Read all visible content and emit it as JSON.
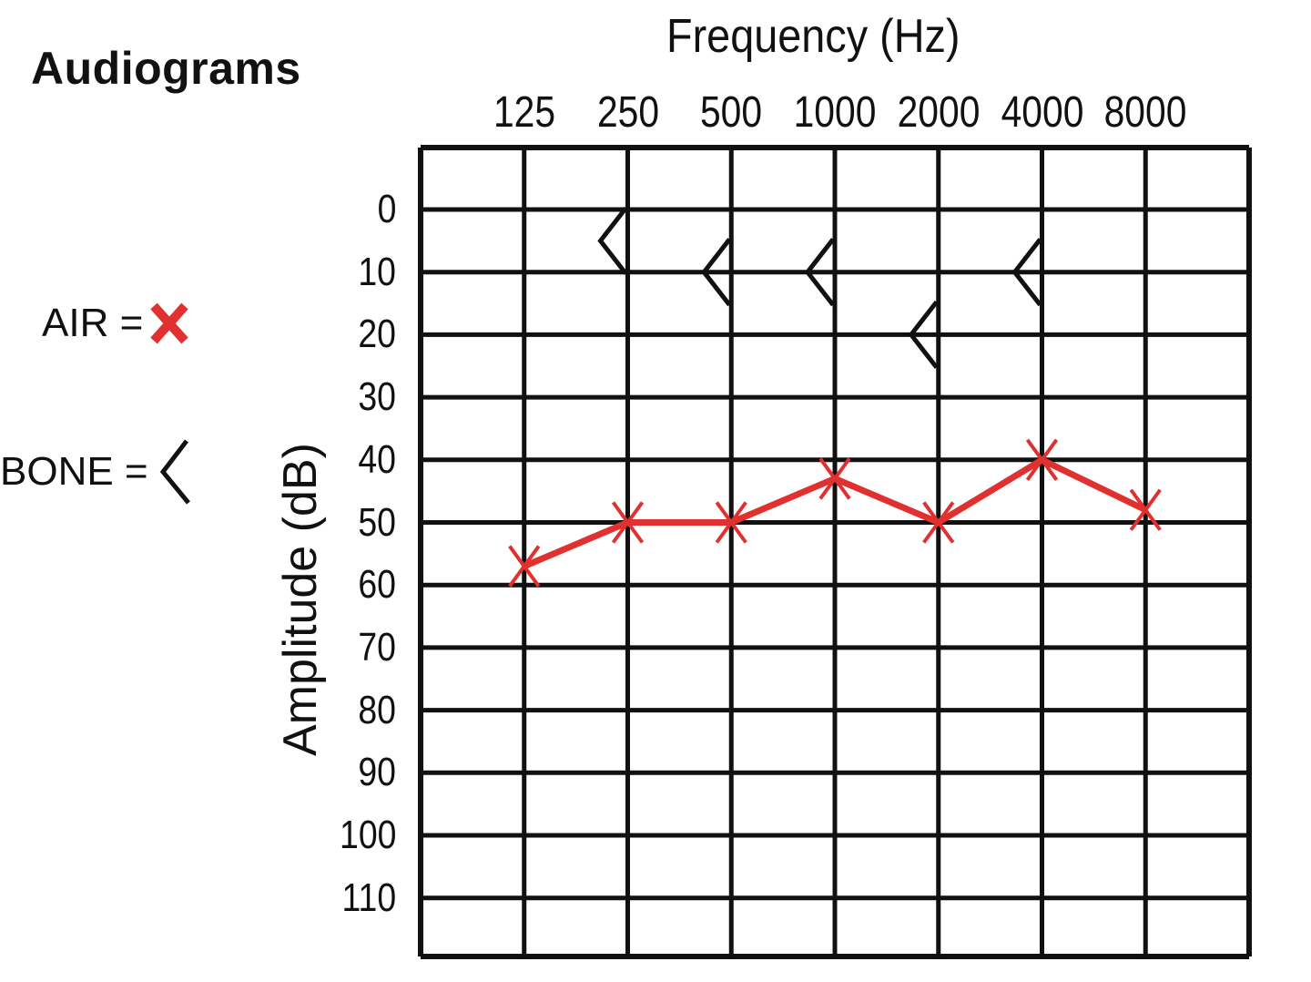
{
  "title": "Audiograms",
  "legend": {
    "air": {
      "label": "AIR =",
      "symbol": "X",
      "color": "#e03030"
    },
    "bone": {
      "label": "BONE =",
      "symbol": "<",
      "color": "#111111"
    }
  },
  "axes": {
    "xlabel": "Frequency (Hz)",
    "ylabel": "Amplitude (dB)",
    "xticks": [
      "125",
      "250",
      "500",
      "1000",
      "2000",
      "4000",
      "8000"
    ],
    "yticks": [
      "0",
      "10",
      "20",
      "30",
      "40",
      "50",
      "60",
      "70",
      "80",
      "90",
      "100",
      "110"
    ]
  },
  "chart_data": {
    "type": "line",
    "title": "Audiograms",
    "xlabel": "Frequency (Hz)",
    "ylabel": "Amplitude (dB)",
    "categories": [
      "125",
      "250",
      "500",
      "1000",
      "2000",
      "4000",
      "8000"
    ],
    "y_inverted": true,
    "ylim": [
      -10,
      120
    ],
    "grid": true,
    "legend_position": "left",
    "series": [
      {
        "name": "AIR",
        "marker": "X",
        "color": "#e03030",
        "values": [
          57,
          50,
          50,
          43,
          50,
          40,
          48
        ]
      },
      {
        "name": "BONE",
        "marker": "<",
        "color": "#111111",
        "values": [
          null,
          5,
          10,
          10,
          20,
          10,
          null
        ]
      }
    ]
  }
}
